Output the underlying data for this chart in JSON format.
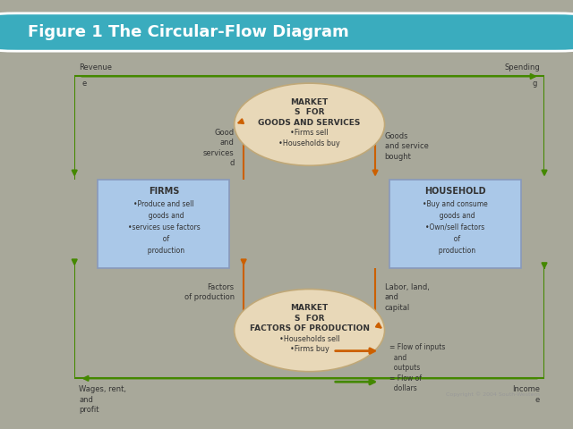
{
  "title": "Figure 1 The Circular-Flow Diagram",
  "title_bg": "#3aacbe",
  "title_color": "white",
  "bg_color": "#a8a89a",
  "diagram_bg": "#f0eeea",
  "box_color": "#aac8e8",
  "ellipse_color": "#e8d8b8",
  "orange": "#cc6000",
  "green": "#448800",
  "copyright": "Copyright © 2004 South-Western",
  "firms_lines": [
    "FIRMS",
    "•Produce and sell",
    "  goods and",
    "•services use factors",
    "  of",
    "  production"
  ],
  "household_lines": [
    "HOUSEHOLD",
    "•Buy and consume",
    "  goods and",
    "•Own/sell factors",
    "  of",
    "  production"
  ],
  "goods_lines": [
    "MARKET",
    "S  FOR",
    "GOODS AND SERVICES",
    "•Firms sell",
    "•Households buy"
  ],
  "factors_lines": [
    "MARKET",
    "S  FOR",
    "FACTORS OF PRODUCTION",
    "•Households sell",
    "•Firms buy"
  ]
}
